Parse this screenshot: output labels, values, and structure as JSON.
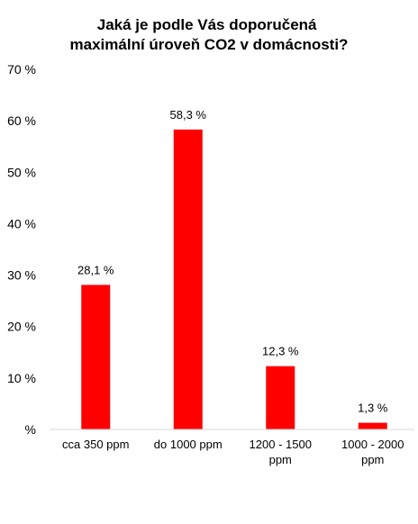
{
  "chart_data": {
    "type": "bar",
    "title": [
      "Jaká je podle Vás doporučená",
      "maximální úroveň CO2 v domácnosti?"
    ],
    "categories": [
      [
        "cca 350 ppm"
      ],
      [
        "do 1000 ppm"
      ],
      [
        "1200 - 1500",
        "ppm"
      ],
      [
        "1000 - 2000",
        "ppm"
      ]
    ],
    "values": [
      28.1,
      58.3,
      12.3,
      1.3
    ],
    "data_labels": [
      "28,1 %",
      "58,3 %",
      "12,3 %",
      "1,3 %"
    ],
    "y_ticks": [
      0,
      10,
      20,
      30,
      40,
      50,
      60,
      70
    ],
    "y_tick_labels": [
      "%",
      "10 %",
      "20 %",
      "30 %",
      "40 %",
      "50 %",
      "60 %",
      "70 %"
    ],
    "ylim": [
      0,
      70
    ],
    "grid": false,
    "legend": "none",
    "bar_color": "#ff0000"
  }
}
